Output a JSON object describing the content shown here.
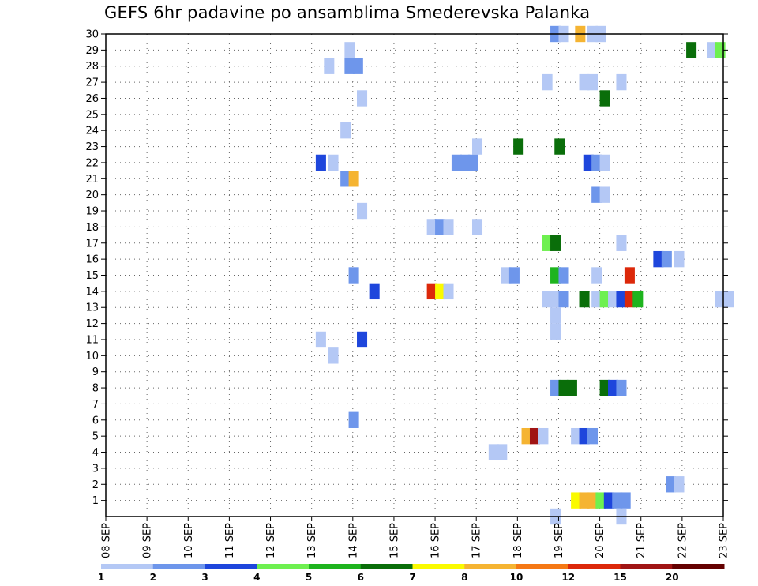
{
  "chart_data": {
    "type": "heatmap",
    "title": "GEFS 6hr padavine po ansamblima Smederevska Palanka",
    "x_ticks": [
      "08 SEP",
      "09 SEP",
      "10 SEP",
      "11 SEP",
      "12 SEP",
      "13 SEP",
      "14 SEP",
      "15 SEP",
      "16 SEP",
      "17 SEP",
      "18 SEP",
      "19 SEP",
      "20 SEP",
      "21 SEP",
      "22 SEP",
      "23 SEP"
    ],
    "y_ticks": [
      "1",
      "2",
      "3",
      "4",
      "5",
      "6",
      "7",
      "8",
      "9",
      "10",
      "11",
      "12",
      "13",
      "14",
      "15",
      "16",
      "17",
      "18",
      "19",
      "20",
      "21",
      "22",
      "23",
      "24",
      "25",
      "26",
      "27",
      "28",
      "29",
      "30"
    ],
    "x_range_days": [
      0,
      15
    ],
    "y_range": [
      0,
      30
    ],
    "grid": true,
    "color_levels": [
      "1",
      "2",
      "3",
      "4",
      "5",
      "6",
      "7",
      "8",
      "10",
      "12",
      "15",
      "20"
    ],
    "level_colors": [
      "#b4c8f5",
      "#6e96eb",
      "#1e46dc",
      "#6ef050",
      "#1eb41e",
      "#0a6e0a",
      "#fafa00",
      "#f5b432",
      "#f57814",
      "#dc280a",
      "#a01414",
      "#640000"
    ],
    "cells": [
      {
        "d": 5.8,
        "m": 29,
        "c": 0
      },
      {
        "d": 5.8,
        "m": 28,
        "c": 1
      },
      {
        "d": 6.0,
        "m": 28,
        "c": 1
      },
      {
        "d": 5.3,
        "m": 28,
        "c": 0
      },
      {
        "d": 6.1,
        "m": 26,
        "c": 0
      },
      {
        "d": 5.7,
        "m": 24,
        "c": 0
      },
      {
        "d": 8.9,
        "m": 23,
        "c": 0
      },
      {
        "d": 9.9,
        "m": 23,
        "c": 5
      },
      {
        "d": 10.9,
        "m": 23,
        "c": 5
      },
      {
        "d": 5.1,
        "m": 22,
        "c": 2
      },
      {
        "d": 5.4,
        "m": 22,
        "c": 0
      },
      {
        "d": 8.4,
        "m": 22,
        "c": 1
      },
      {
        "d": 8.6,
        "m": 22,
        "c": 1
      },
      {
        "d": 8.8,
        "m": 22,
        "c": 1
      },
      {
        "d": 11.6,
        "m": 22,
        "c": 2
      },
      {
        "d": 11.8,
        "m": 22,
        "c": 1
      },
      {
        "d": 12.0,
        "m": 22,
        "c": 0
      },
      {
        "d": 5.7,
        "m": 21,
        "c": 1
      },
      {
        "d": 5.9,
        "m": 21,
        "c": 7
      },
      {
        "d": 11.8,
        "m": 20,
        "c": 1
      },
      {
        "d": 12.0,
        "m": 20,
        "c": 0
      },
      {
        "d": 6.1,
        "m": 19,
        "c": 0
      },
      {
        "d": 7.8,
        "m": 18,
        "c": 0
      },
      {
        "d": 8.0,
        "m": 18,
        "c": 1
      },
      {
        "d": 8.2,
        "m": 18,
        "c": 0
      },
      {
        "d": 8.9,
        "m": 18,
        "c": 0
      },
      {
        "d": 10.6,
        "m": 17,
        "c": 3
      },
      {
        "d": 10.8,
        "m": 17,
        "c": 5
      },
      {
        "d": 12.4,
        "m": 17,
        "c": 0
      },
      {
        "d": 13.3,
        "m": 16,
        "c": 2
      },
      {
        "d": 13.5,
        "m": 16,
        "c": 1
      },
      {
        "d": 13.8,
        "m": 16,
        "c": 0
      },
      {
        "d": 5.9,
        "m": 15,
        "c": 1
      },
      {
        "d": 9.6,
        "m": 15,
        "c": 0
      },
      {
        "d": 9.8,
        "m": 15,
        "c": 1
      },
      {
        "d": 10.8,
        "m": 15,
        "c": 4
      },
      {
        "d": 11.0,
        "m": 15,
        "c": 1
      },
      {
        "d": 11.8,
        "m": 15,
        "c": 0
      },
      {
        "d": 12.6,
        "m": 15,
        "c": 9
      },
      {
        "d": 6.4,
        "m": 14,
        "c": 2
      },
      {
        "d": 7.8,
        "m": 14,
        "c": 9
      },
      {
        "d": 8.0,
        "m": 14,
        "c": 6
      },
      {
        "d": 8.2,
        "m": 14,
        "c": 0
      },
      {
        "d": 10.6,
        "m": 13.5,
        "c": 0
      },
      {
        "d": 10.8,
        "m": 13.5,
        "c": 0
      },
      {
        "d": 11.0,
        "m": 13.5,
        "c": 1
      },
      {
        "d": 11.5,
        "m": 13.5,
        "c": 5
      },
      {
        "d": 11.8,
        "m": 13.5,
        "c": 0
      },
      {
        "d": 12.0,
        "m": 13.5,
        "c": 3
      },
      {
        "d": 12.2,
        "m": 13.5,
        "c": 0
      },
      {
        "d": 12.4,
        "m": 13.5,
        "c": 2
      },
      {
        "d": 12.6,
        "m": 13.5,
        "c": 9
      },
      {
        "d": 12.8,
        "m": 13.5,
        "c": 4
      },
      {
        "d": 14.8,
        "m": 13.5,
        "c": 0
      },
      {
        "d": 15.0,
        "m": 13.5,
        "c": 0
      },
      {
        "d": 10.8,
        "m": 12.5,
        "c": 0
      },
      {
        "d": 5.1,
        "m": 11,
        "c": 0
      },
      {
        "d": 10.8,
        "m": 11.5,
        "c": 0
      },
      {
        "d": 6.1,
        "m": 11,
        "c": 2
      },
      {
        "d": 5.4,
        "m": 10,
        "c": 0
      },
      {
        "d": 10.8,
        "m": 8,
        "c": 1
      },
      {
        "d": 11.0,
        "m": 8,
        "c": 5
      },
      {
        "d": 11.2,
        "m": 8,
        "c": 5
      },
      {
        "d": 12.0,
        "m": 8,
        "c": 5
      },
      {
        "d": 12.2,
        "m": 8,
        "c": 2
      },
      {
        "d": 12.4,
        "m": 8,
        "c": 1
      },
      {
        "d": 5.9,
        "m": 6,
        "c": 1
      },
      {
        "d": 10.1,
        "m": 5,
        "c": 7
      },
      {
        "d": 10.3,
        "m": 5,
        "c": 10
      },
      {
        "d": 10.5,
        "m": 5,
        "c": 0
      },
      {
        "d": 11.3,
        "m": 5,
        "c": 0
      },
      {
        "d": 11.5,
        "m": 5,
        "c": 2
      },
      {
        "d": 11.7,
        "m": 5,
        "c": 1
      },
      {
        "d": 9.3,
        "m": 4,
        "c": 0
      },
      {
        "d": 9.5,
        "m": 4,
        "c": 0
      },
      {
        "d": 13.6,
        "m": 2,
        "c": 1
      },
      {
        "d": 13.8,
        "m": 2,
        "c": 0
      },
      {
        "d": 11.3,
        "m": 1,
        "c": 6
      },
      {
        "d": 11.5,
        "m": 1,
        "c": 7
      },
      {
        "d": 11.7,
        "m": 1,
        "c": 7
      },
      {
        "d": 11.9,
        "m": 1,
        "c": 3
      },
      {
        "d": 12.1,
        "m": 1,
        "c": 2
      },
      {
        "d": 12.3,
        "m": 1,
        "c": 1
      },
      {
        "d": 12.5,
        "m": 1,
        "c": 1
      },
      {
        "d": 14.1,
        "m": 29,
        "c": 5
      },
      {
        "d": 14.6,
        "m": 29,
        "c": 0
      },
      {
        "d": 14.8,
        "m": 29,
        "c": 3
      },
      {
        "d": 10.8,
        "m": 30,
        "c": 1
      },
      {
        "d": 11.0,
        "m": 30,
        "c": 0
      },
      {
        "d": 11.4,
        "m": 30,
        "c": 7
      },
      {
        "d": 11.7,
        "m": 30,
        "c": 0
      },
      {
        "d": 11.9,
        "m": 30,
        "c": 0
      },
      {
        "d": 10.6,
        "m": 27,
        "c": 0
      },
      {
        "d": 11.5,
        "m": 27,
        "c": 0
      },
      {
        "d": 11.7,
        "m": 27,
        "c": 0
      },
      {
        "d": 12.4,
        "m": 27,
        "c": 0
      },
      {
        "d": 12.0,
        "m": 26,
        "c": 5
      },
      {
        "d": 10.8,
        "m": 0,
        "c": 0
      },
      {
        "d": 12.4,
        "m": 0,
        "c": 0
      }
    ]
  }
}
